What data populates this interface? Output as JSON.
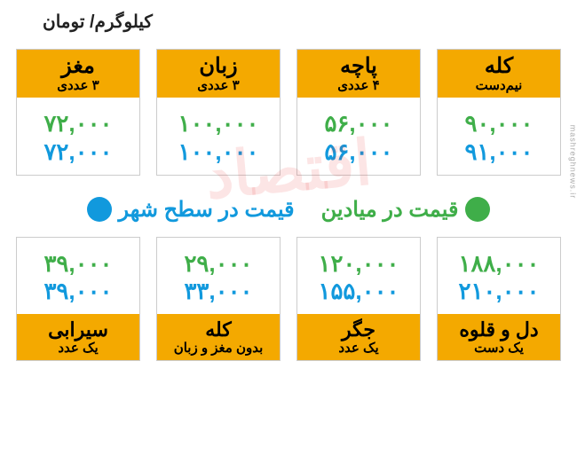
{
  "unit_label": "کیلوگرم/ تومان",
  "colors": {
    "header_bg": "#f4a900",
    "price_green": "#3fae49",
    "price_blue": "#1199dd",
    "card_border": "#cccccc",
    "text": "#000000"
  },
  "legend": {
    "green_label": "قیمت در میادین",
    "blue_label": "قیمت در سطح شهر"
  },
  "top_row": [
    {
      "title": "مغز",
      "sub": "۳ عددی",
      "green": "۷۲,۰۰۰",
      "blue": "۷۲,۰۰۰"
    },
    {
      "title": "زبان",
      "sub": "۳ عددی",
      "green": "۱۰۰,۰۰۰",
      "blue": "۱۰۰,۰۰۰"
    },
    {
      "title": "پاچه",
      "sub": "۴ عددی",
      "green": "۵۶,۰۰۰",
      "blue": "۵۶,۰۰۰"
    },
    {
      "title": "کله",
      "sub": "نیم‌دست",
      "green": "۹۰,۰۰۰",
      "blue": "۹۱,۰۰۰"
    }
  ],
  "bottom_row": [
    {
      "title": "سیرابی",
      "sub": "یک عدد",
      "green": "۳۹,۰۰۰",
      "blue": "۳۹,۰۰۰"
    },
    {
      "title": "کله",
      "sub": "بدون مغز و زبان",
      "green": "۲۹,۰۰۰",
      "blue": "۳۳,۰۰۰"
    },
    {
      "title": "جگر",
      "sub": "یک عدد",
      "green": "۱۲۰,۰۰۰",
      "blue": "۱۵۵,۰۰۰"
    },
    {
      "title": "دل و قلوه",
      "sub": "یک دست",
      "green": "۱۸۸,۰۰۰",
      "blue": "۲۱۰,۰۰۰"
    }
  ],
  "source": "mashreghnews.ir"
}
